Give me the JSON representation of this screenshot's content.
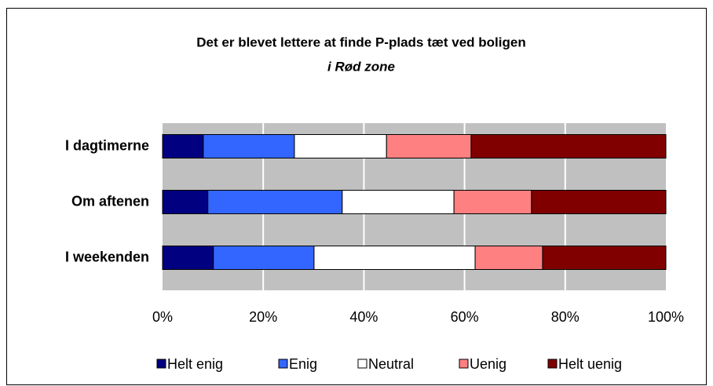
{
  "chart_data": {
    "type": "stacked_barh",
    "title": "Det er blevet lettere at finde P-plads tæt ved boligen",
    "subtitle": "i Rød zone",
    "categories": [
      "I dagtimerne",
      "Om aftenen",
      "I weekenden"
    ],
    "series": [
      {
        "name": "Helt enig",
        "color": "#000080",
        "values": [
          8.1,
          9.0,
          10.1
        ]
      },
      {
        "name": "Enig",
        "color": "#3366ff",
        "values": [
          18.1,
          26.7,
          20.0
        ]
      },
      {
        "name": "Neutral",
        "color": "#ffffff",
        "values": [
          18.3,
          22.2,
          32.0
        ]
      },
      {
        "name": "Uenig",
        "color": "#ff8080",
        "values": [
          16.8,
          15.4,
          13.4
        ]
      },
      {
        "name": "Helt uenig",
        "color": "#800000",
        "values": [
          38.7,
          26.7,
          24.5
        ]
      }
    ],
    "xlim": [
      0,
      100
    ],
    "xticks": [
      {
        "value": 0,
        "label": "0%"
      },
      {
        "value": 20,
        "label": "20%"
      },
      {
        "value": 40,
        "label": "40%"
      },
      {
        "value": 60,
        "label": "60%"
      },
      {
        "value": 80,
        "label": "80%"
      },
      {
        "value": 100,
        "label": "100%"
      }
    ],
    "grid": true,
    "legend": "bottom"
  }
}
